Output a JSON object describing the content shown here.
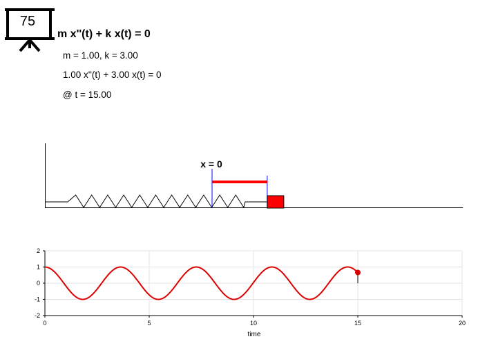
{
  "header": {
    "board_number": "75",
    "equation": "m x''(t) + k x(t) = 0",
    "params": "m = 1.00, k = 3.00",
    "equation_numeric": "1.00 x''(t) + 3.00 x(t) = 0",
    "time_label": "@ t = 15.00"
  },
  "animation": {
    "equilibrium_label": "x = 0",
    "displacement": 0.66,
    "colors": {
      "mass": "#ff0000",
      "marker": "#0000ff",
      "spring": "#000000"
    },
    "icons": [
      "presentation-board-icon"
    ]
  },
  "chart_data": {
    "type": "line",
    "title": "",
    "xlabel": "time",
    "ylabel": "",
    "xlim": [
      0,
      20
    ],
    "ylim": [
      -2,
      2
    ],
    "xticks": [
      "0",
      "5",
      "10",
      "15",
      "20"
    ],
    "yticks": [
      "2",
      "1",
      "0",
      "-1",
      "-2"
    ],
    "grid": true,
    "series": [
      {
        "color": "#dd0000",
        "formula": "cos(sqrt(k/m) * t)",
        "t_range": [
          0,
          15
        ]
      }
    ],
    "current_point": {
      "t": 15.0,
      "x": 0.66
    }
  }
}
